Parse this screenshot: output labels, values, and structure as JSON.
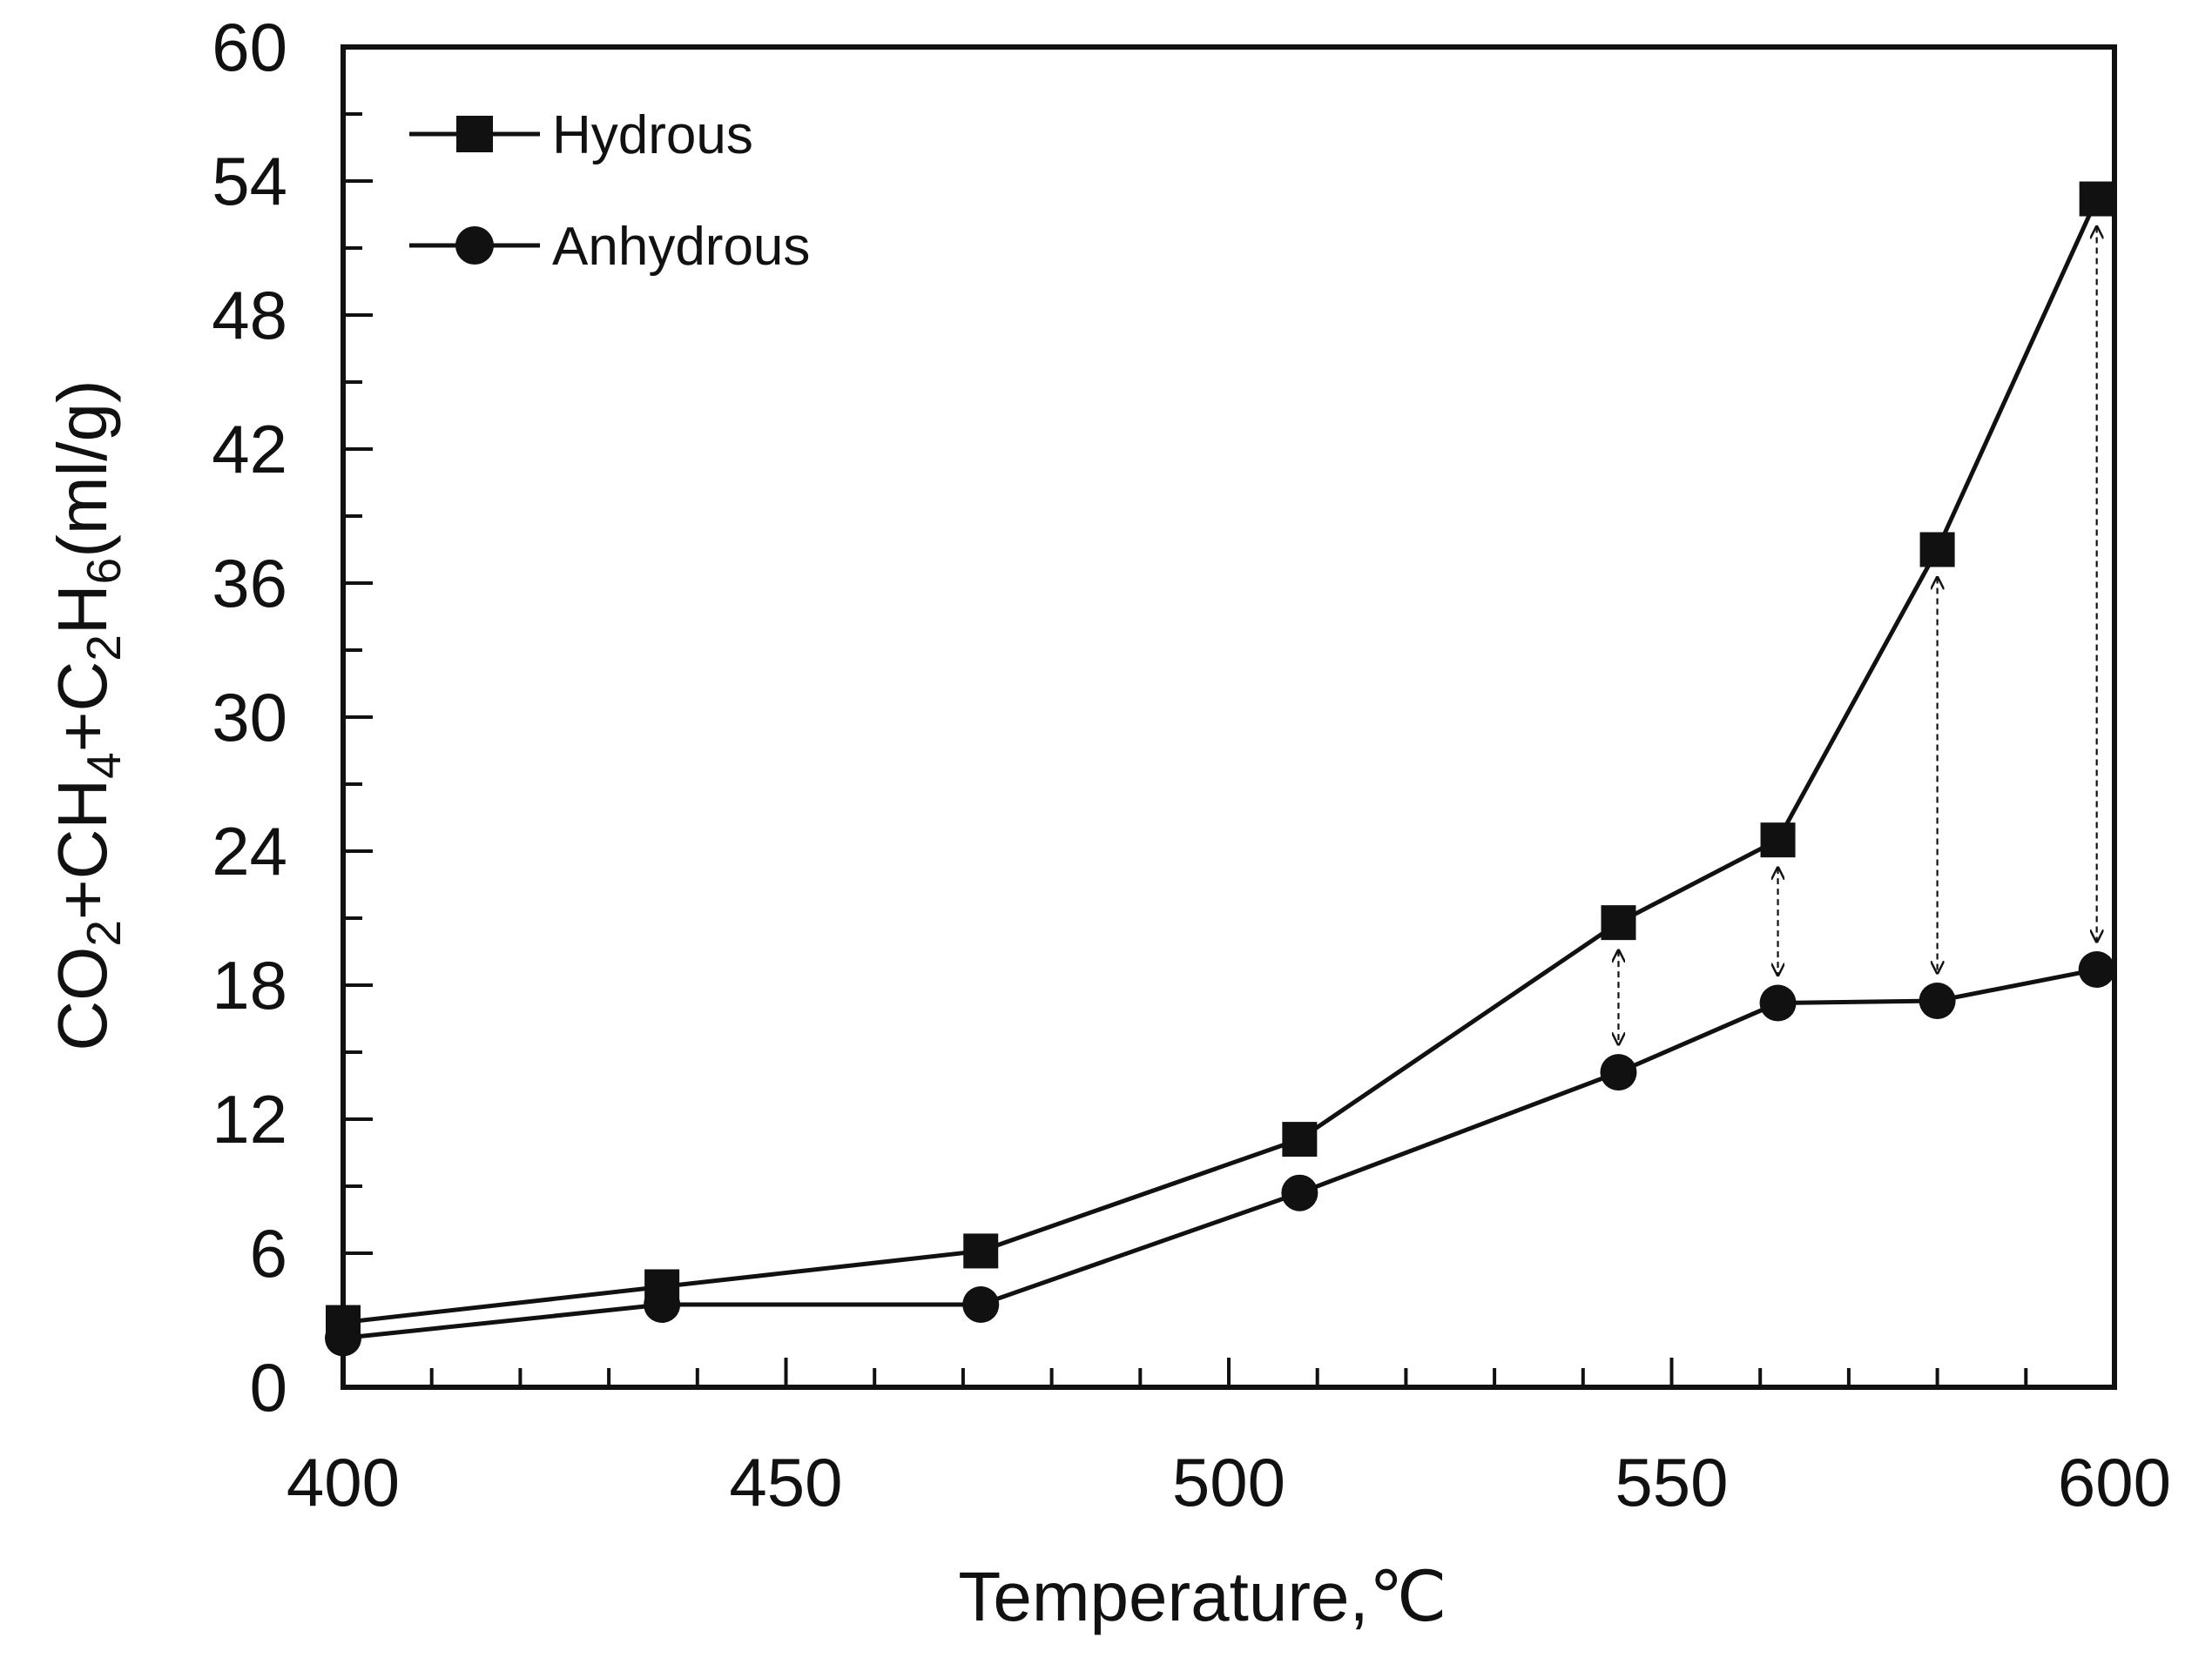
{
  "chart_data": {
    "type": "line",
    "title": "",
    "xlabel": "Temperature,℃",
    "ylabel": "CO2+CH4+C2H6(ml/g)",
    "ylabel_parts": [
      "CO",
      "2",
      "+CH",
      "4",
      "+C",
      "2",
      "H",
      "6",
      "(ml/g)"
    ],
    "xlim": [
      400,
      600
    ],
    "ylim": [
      0,
      60
    ],
    "xticks": [
      400,
      450,
      500,
      550,
      600
    ],
    "yticks": [
      0,
      6,
      12,
      18,
      24,
      30,
      36,
      42,
      48,
      54,
      60
    ],
    "x_minor_step": 10,
    "y_minor_step": 3,
    "legend_position": "top-left",
    "grid": false,
    "x": [
      400,
      436,
      472,
      508,
      544,
      562,
      580,
      598
    ],
    "series": [
      {
        "name": "Hydrous",
        "marker": "square",
        "values": [
          2.9,
          4.5,
          6.1,
          11.1,
          20.8,
          24.5,
          37.5,
          53.2
        ]
      },
      {
        "name": "Anhydrous",
        "marker": "circle",
        "values": [
          2.2,
          3.7,
          3.7,
          8.7,
          14.1,
          17.2,
          17.3,
          18.7
        ]
      }
    ],
    "annotations": [
      {
        "type": "double-arrow",
        "x": 544,
        "y_from": 20.8,
        "y_to": 14.1
      },
      {
        "type": "double-arrow",
        "x": 562,
        "y_from": 24.5,
        "y_to": 17.2
      },
      {
        "type": "double-arrow",
        "x": 580,
        "y_from": 37.5,
        "y_to": 17.3
      },
      {
        "type": "double-arrow",
        "x": 598,
        "y_from": 53.2,
        "y_to": 18.7
      }
    ]
  },
  "colors": {
    "line": "#111111",
    "background": "#ffffff"
  }
}
